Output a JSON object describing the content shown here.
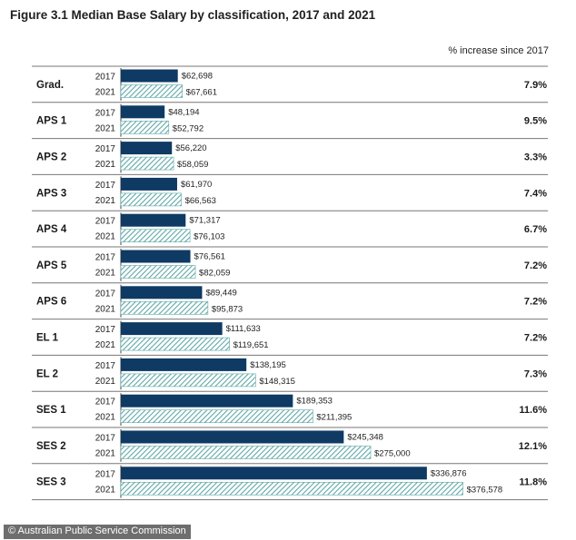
{
  "title": "Figure 3.1 Median Base Salary by classification, 2017 and 2021",
  "pct_header": "% increase since 2017",
  "credit": "© Australian Public Service Commission",
  "colors": {
    "y2017": "#0e3a63",
    "y2021_stripe": "#5fa8a8",
    "rule": "#777777"
  },
  "chart_data": {
    "type": "bar",
    "orientation": "horizontal",
    "title": "Figure 3.1 Median Base Salary by classification, 2017 and 2021",
    "categories": [
      "Grad.",
      "APS 1",
      "APS 2",
      "APS 3",
      "APS 4",
      "APS 5",
      "APS 6",
      "EL 1",
      "EL 2",
      "SES 1",
      "SES 2",
      "SES 3"
    ],
    "series": [
      {
        "name": "2017",
        "values": [
          62698,
          48194,
          56220,
          61970,
          71317,
          76561,
          89449,
          111633,
          138195,
          189353,
          245348,
          336876
        ],
        "labels": [
          "$62,698",
          "$48,194",
          "$56,220",
          "$61,970",
          "$71,317",
          "$76,561",
          "$89,449",
          "$111,633",
          "$138,195",
          "$189,353",
          "$245,348",
          "$336,876"
        ]
      },
      {
        "name": "2021",
        "values": [
          67661,
          52792,
          58059,
          66563,
          76103,
          82059,
          95873,
          119651,
          148315,
          211395,
          275000,
          376578
        ],
        "labels": [
          "$67,661",
          "$52,792",
          "$58,059",
          "$66,563",
          "$76,103",
          "$82,059",
          "$95,873",
          "$119,651",
          "$148,315",
          "$211,395",
          "$275,000",
          "$376,578"
        ]
      }
    ],
    "pct_increase": [
      "7.9%",
      "9.5%",
      "3.3%",
      "7.4%",
      "6.7%",
      "7.2%",
      "7.2%",
      "7.2%",
      "7.3%",
      "11.6%",
      "12.1%",
      "11.8%"
    ]
  }
}
